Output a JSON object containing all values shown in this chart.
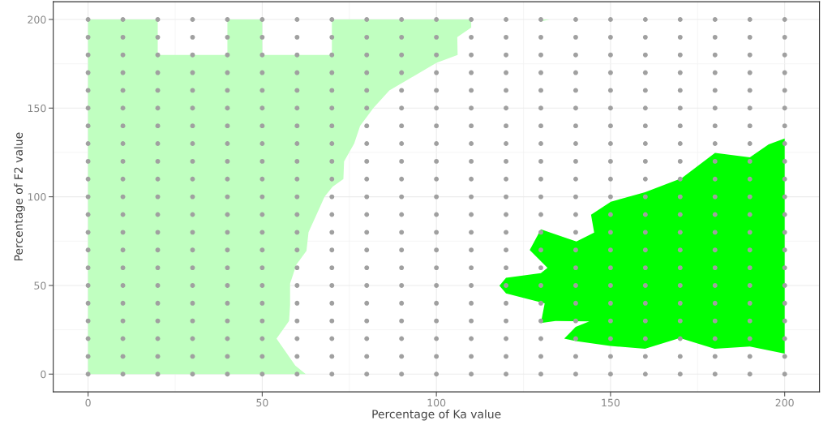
{
  "chart_data": {
    "type": "area",
    "xlabel": "Percentage of Ka value",
    "ylabel": "Percentage of F2 value",
    "xlim": [
      -10,
      210
    ],
    "ylim": [
      -10,
      210
    ],
    "xticks": [
      0,
      50,
      100,
      150,
      200
    ],
    "yticks": [
      0,
      50,
      100,
      150,
      200
    ],
    "grid": true,
    "series": [
      {
        "color": "#c0ffc0",
        "x": [
          0,
          0,
          20,
          20,
          40,
          40,
          50,
          50,
          70,
          70,
          110,
          110,
          106,
          106.1,
          100,
          86.5,
          81.9,
          78.1,
          76.4,
          73.5,
          73.3,
          70.2,
          67.9,
          65.6,
          63.3,
          62.7,
          59.8,
          58,
          58,
          57.7,
          54.1,
          59.5,
          62.5
        ],
        "values": [
          0,
          200,
          200,
          180,
          180,
          200,
          200,
          180,
          180,
          200,
          200,
          195.4,
          190,
          180,
          175.5,
          160,
          150,
          140,
          130,
          120,
          110,
          105.7,
          100,
          90,
          80,
          69.5,
          61.8,
          51,
          39,
          30,
          20,
          4.8,
          0
        ]
      },
      {
        "color": "#c0ffc0",
        "x": [
          130,
          132.5,
          130
        ],
        "values": [
          198.8,
          200,
          200
        ]
      },
      {
        "color": "#00ff00",
        "x": [
          200,
          195.4,
          190,
          180,
          170.4,
          159.9,
          150.1,
          144.4,
          145.3,
          140.2,
          130,
          126.8,
          131.9,
          130,
          120,
          118.1,
          120,
          131.1,
          130,
          134.2,
          143.9,
          140,
          136.7,
          140,
          149.9,
          159.9,
          169.9,
          179.9,
          190,
          200
        ],
        "values": [
          132.9,
          129.5,
          122.2,
          124.7,
          110.5,
          102.6,
          97.2,
          89.9,
          79.8,
          74.8,
          81.7,
          70,
          59.9,
          56.9,
          54.3,
          49.9,
          45.5,
          39.9,
          28.8,
          30,
          29.7,
          26.7,
          20,
          18.6,
          15.9,
          14.3,
          20.4,
          14.3,
          15.6,
          11.5
        ]
      },
      {
        "type": "scatter",
        "marker": "circle",
        "color": "#a0a0a0",
        "x": [
          0,
          10,
          20,
          30,
          40,
          50,
          60,
          70,
          80,
          90,
          100,
          110,
          120,
          130,
          140,
          150,
          160,
          170,
          180,
          190,
          200,
          0,
          10,
          20,
          30,
          40,
          50,
          60,
          70,
          80,
          90,
          100,
          110,
          120,
          130,
          140,
          150,
          160,
          170,
          180,
          190,
          200,
          0,
          10,
          20,
          30,
          40,
          50,
          60,
          70,
          80,
          90,
          100,
          110,
          120,
          130,
          140,
          150,
          160,
          170,
          180,
          190,
          200,
          0,
          10,
          20,
          30,
          40,
          50,
          60,
          70,
          80,
          90,
          100,
          110,
          120,
          130,
          140,
          150,
          160,
          170,
          180,
          190,
          200,
          0,
          10,
          20,
          30,
          40,
          50,
          60,
          70,
          80,
          90,
          100,
          110,
          120,
          130,
          140,
          150,
          160,
          170,
          180,
          190,
          200,
          0,
          10,
          20,
          30,
          40,
          50,
          60,
          70,
          80,
          90,
          100,
          110,
          120,
          130,
          140,
          150,
          160,
          170,
          180,
          190,
          200,
          0,
          10,
          20,
          30,
          40,
          50,
          60,
          70,
          80,
          90,
          100,
          110,
          120,
          130,
          140,
          150,
          160,
          170,
          180,
          190,
          200,
          0,
          10,
          20,
          30,
          40,
          50,
          60,
          70,
          80,
          90,
          100,
          110,
          120,
          130,
          140,
          150,
          160,
          170,
          180,
          190,
          200,
          0,
          10,
          20,
          30,
          40,
          50,
          60,
          70,
          80,
          90,
          100,
          110,
          120,
          130,
          140,
          150,
          160,
          170,
          180,
          190,
          200,
          0,
          10,
          20,
          30,
          40,
          50,
          60,
          70,
          80,
          90,
          100,
          110,
          120,
          130,
          140,
          150,
          160,
          170,
          180,
          190,
          200,
          0,
          10,
          20,
          30,
          40,
          50,
          60,
          70,
          80,
          90,
          100,
          110,
          120,
          130,
          140,
          150,
          160,
          170,
          180,
          190,
          200,
          0,
          10,
          20,
          30,
          40,
          50,
          60,
          70,
          80,
          90,
          100,
          110,
          120,
          130,
          140,
          150,
          160,
          170,
          180,
          190,
          200,
          0,
          10,
          20,
          30,
          40,
          50,
          60,
          70,
          80,
          90,
          100,
          110,
          120,
          130,
          140,
          150,
          160,
          170,
          180,
          190,
          200,
          0,
          10,
          20,
          30,
          40,
          50,
          60,
          70,
          80,
          90,
          100,
          110,
          120,
          130,
          140,
          150,
          160,
          170,
          180,
          190,
          200,
          0,
          10,
          20,
          30,
          40,
          50,
          60,
          70,
          80,
          90,
          100,
          110,
          120,
          130,
          140,
          150,
          160,
          170,
          180,
          190,
          200,
          0,
          10,
          20,
          30,
          40,
          50,
          60,
          70,
          80,
          90,
          100,
          110,
          120,
          130,
          140,
          150,
          160,
          170,
          180,
          190,
          200,
          0,
          10,
          20,
          30,
          40,
          50,
          60,
          70,
          80,
          90,
          100,
          110,
          120,
          130,
          140,
          150,
          160,
          170,
          180,
          190,
          200,
          0,
          10,
          20,
          30,
          40,
          50,
          60,
          70,
          80,
          90,
          100,
          110,
          120,
          130,
          140,
          150,
          160,
          170,
          180,
          190,
          200,
          0,
          10,
          20,
          30,
          40,
          50,
          60,
          70,
          80,
          90,
          100,
          110,
          120,
          130,
          140,
          150,
          160,
          170,
          180,
          190,
          200,
          0,
          10,
          20,
          30,
          40,
          50,
          60,
          70,
          80,
          90,
          100,
          110,
          120,
          130,
          140,
          150,
          160,
          170,
          180,
          190,
          200,
          0,
          10,
          20,
          30,
          40,
          50,
          60,
          70,
          80,
          90,
          100,
          110,
          120,
          130,
          140,
          150,
          160,
          170,
          180,
          190,
          200
        ],
        "values": [
          0,
          0,
          0,
          0,
          0,
          0,
          0,
          0,
          0,
          0,
          0,
          0,
          0,
          0,
          0,
          0,
          0,
          0,
          0,
          0,
          0,
          10,
          10,
          10,
          10,
          10,
          10,
          10,
          10,
          10,
          10,
          10,
          10,
          10,
          10,
          10,
          10,
          10,
          10,
          10,
          10,
          10,
          20,
          20,
          20,
          20,
          20,
          20,
          20,
          20,
          20,
          20,
          20,
          20,
          20,
          20,
          20,
          20,
          20,
          20,
          20,
          20,
          20,
          30,
          30,
          30,
          30,
          30,
          30,
          30,
          30,
          30,
          30,
          30,
          30,
          30,
          30,
          30,
          30,
          30,
          30,
          30,
          30,
          30,
          40,
          40,
          40,
          40,
          40,
          40,
          40,
          40,
          40,
          40,
          40,
          40,
          40,
          40,
          40,
          40,
          40,
          40,
          40,
          40,
          40,
          50,
          50,
          50,
          50,
          50,
          50,
          50,
          50,
          50,
          50,
          50,
          50,
          50,
          50,
          50,
          50,
          50,
          50,
          50,
          50,
          50,
          60,
          60,
          60,
          60,
          60,
          60,
          60,
          60,
          60,
          60,
          60,
          60,
          60,
          60,
          60,
          60,
          60,
          60,
          60,
          60,
          60,
          70,
          70,
          70,
          70,
          70,
          70,
          70,
          70,
          70,
          70,
          70,
          70,
          70,
          70,
          70,
          70,
          70,
          70,
          70,
          70,
          70,
          80,
          80,
          80,
          80,
          80,
          80,
          80,
          80,
          80,
          80,
          80,
          80,
          80,
          80,
          80,
          80,
          80,
          80,
          80,
          80,
          80,
          90,
          90,
          90,
          90,
          90,
          90,
          90,
          90,
          90,
          90,
          90,
          90,
          90,
          90,
          90,
          90,
          90,
          90,
          90,
          90,
          90,
          100,
          100,
          100,
          100,
          100,
          100,
          100,
          100,
          100,
          100,
          100,
          100,
          100,
          100,
          100,
          100,
          100,
          100,
          100,
          100,
          100,
          110,
          110,
          110,
          110,
          110,
          110,
          110,
          110,
          110,
          110,
          110,
          110,
          110,
          110,
          110,
          110,
          110,
          110,
          110,
          110,
          110,
          120,
          120,
          120,
          120,
          120,
          120,
          120,
          120,
          120,
          120,
          120,
          120,
          120,
          120,
          120,
          120,
          120,
          120,
          120,
          120,
          120,
          130,
          130,
          130,
          130,
          130,
          130,
          130,
          130,
          130,
          130,
          130,
          130,
          130,
          130,
          130,
          130,
          130,
          130,
          130,
          130,
          130,
          140,
          140,
          140,
          140,
          140,
          140,
          140,
          140,
          140,
          140,
          140,
          140,
          140,
          140,
          140,
          140,
          140,
          140,
          140,
          140,
          140,
          150,
          150,
          150,
          150,
          150,
          150,
          150,
          150,
          150,
          150,
          150,
          150,
          150,
          150,
          150,
          150,
          150,
          150,
          150,
          150,
          150,
          160,
          160,
          160,
          160,
          160,
          160,
          160,
          160,
          160,
          160,
          160,
          160,
          160,
          160,
          160,
          160,
          160,
          160,
          160,
          160,
          160,
          170,
          170,
          170,
          170,
          170,
          170,
          170,
          170,
          170,
          170,
          170,
          170,
          170,
          170,
          170,
          170,
          170,
          170,
          170,
          170,
          170,
          180,
          180,
          180,
          180,
          180,
          180,
          180,
          180,
          180,
          180,
          180,
          180,
          180,
          180,
          180,
          180,
          180,
          180,
          180,
          180,
          180,
          190,
          190,
          190,
          190,
          190,
          190,
          190,
          190,
          190,
          190,
          190,
          190,
          190,
          190,
          190,
          190,
          190,
          190,
          190,
          190,
          190,
          200,
          200,
          200,
          200,
          200,
          200,
          200,
          200,
          200,
          200,
          200,
          200,
          200,
          200,
          200,
          200,
          200,
          200,
          200,
          200,
          200
        ]
      }
    ]
  }
}
